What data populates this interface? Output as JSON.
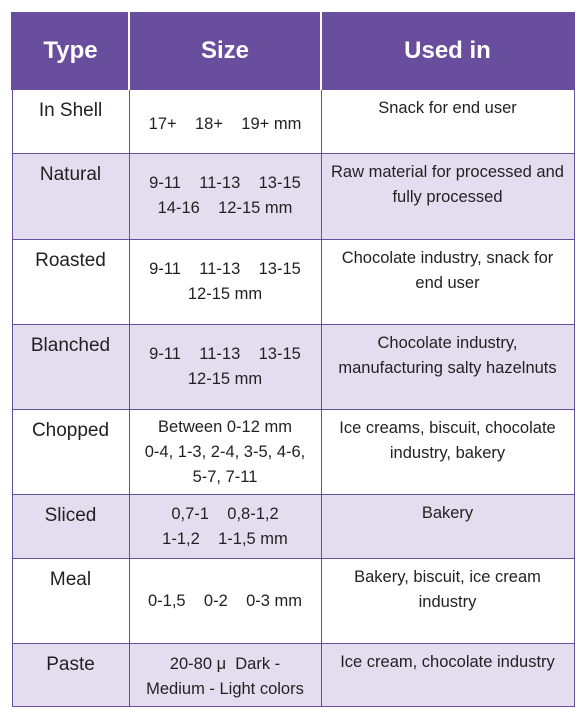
{
  "headers": [
    "Type",
    "Size",
    "Used in"
  ],
  "rows": [
    {
      "type": "In Shell",
      "size": [
        "17+    18+    19+ mm"
      ],
      "used": [
        "Snack for end user"
      ]
    },
    {
      "type": "Natural",
      "size": [
        "9-11    11-13    13-15",
        "14-16    12-15 mm"
      ],
      "used": [
        "Raw material for processed and",
        "fully processed"
      ]
    },
    {
      "type": "Roasted",
      "size": [
        "9-11    11-13    13-15",
        "12-15 mm"
      ],
      "used": [
        "Chocolate industry, snack for",
        "end user"
      ]
    },
    {
      "type": "Blanched",
      "size": [
        "9-11    11-13    13-15",
        "12-15 mm"
      ],
      "used": [
        "Chocolate industry,",
        "manufacturing salty hazelnuts"
      ]
    },
    {
      "type": "Chopped",
      "size": [
        "Between 0-12 mm",
        "0-4, 1-3, 2-4, 3-5, 4-6,",
        "5-7, 7-11"
      ],
      "used": [
        "Ice creams, biscuit, chocolate",
        "industry, bakery"
      ]
    },
    {
      "type": "Sliced",
      "size": [
        "0,7-1    0,8-1,2",
        "1-1,2    1-1,5 mm"
      ],
      "used": [
        "Bakery"
      ]
    },
    {
      "type": "Meal",
      "size": [
        "0-1,5    0-2    0-3 mm"
      ],
      "used": [
        "Bakery, biscuit, ice cream",
        "industry"
      ]
    },
    {
      "type": "Paste",
      "size": [
        "20-80 μ  Dark -",
        "Medium - Light colors"
      ],
      "used": [
        "Ice cream, chocolate industry"
      ]
    }
  ]
}
